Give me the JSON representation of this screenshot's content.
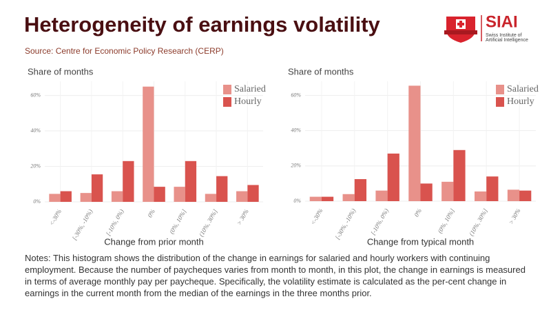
{
  "title": "Heterogeneity of earnings volatility",
  "source": "Source: Centre for Economic Policy Research (CERP)",
  "logo": {
    "name": "SIAI",
    "subtitle": [
      "Swiss Institute of",
      "Artificial Intelligence"
    ]
  },
  "notes": "Notes: This histogram shows the distribution of the change in earnings for salaried and hourly workers with continuing employment. Because the number of paycheques varies from month to month, in this plot, the change in earnings is measured in terms of average monthly pay per paycheque. Specifically, the volatility estimate is calculated as the per-cent change in earnings in the current month from the median of the earnings in the three months prior.",
  "chart_data": [
    {
      "type": "bar",
      "y_label": "Share of months",
      "x_label": "Change from prior month",
      "categories": [
        "<-30%",
        "[-30%, -10%)",
        "[-10%, 0%)",
        "0%",
        "(0%, 10%]",
        "(10%, 30%]",
        "> 30%"
      ],
      "series": [
        {
          "name": "Salaried",
          "color": "#e8918a",
          "values": [
            4.5,
            5,
            6,
            65,
            8.5,
            4.5,
            6
          ]
        },
        {
          "name": "Hourly",
          "color": "#d9534e",
          "values": [
            6,
            15.5,
            23,
            8.5,
            23,
            14.5,
            9.5
          ]
        }
      ],
      "ylim": [
        0,
        68
      ],
      "yticks": [
        {
          "value": 0,
          "label": "0%"
        },
        {
          "value": 20,
          "label": "20%"
        },
        {
          "value": 40,
          "label": "40%"
        },
        {
          "value": 60,
          "label": "60%"
        }
      ],
      "grid": true,
      "legend": "upper right"
    },
    {
      "type": "bar",
      "y_label": "Share of months",
      "x_label": "Change from typical month",
      "categories": [
        "<-30%",
        "[-30%, -10%)",
        "[-10%, 0%)",
        "0%",
        "(0%, 10%]",
        "(10%, 30%]",
        "> 30%"
      ],
      "series": [
        {
          "name": "Salaried",
          "color": "#e8918a",
          "values": [
            2.5,
            4,
            6,
            65.5,
            11,
            5.5,
            6.5
          ]
        },
        {
          "name": "Hourly",
          "color": "#d9534e",
          "values": [
            2.5,
            12.5,
            27,
            10,
            29,
            14,
            6
          ]
        }
      ],
      "ylim": [
        0,
        68
      ],
      "yticks": [
        {
          "value": 0,
          "label": "0%"
        },
        {
          "value": 20,
          "label": "20%"
        },
        {
          "value": 40,
          "label": "40%"
        },
        {
          "value": 60,
          "label": "60%"
        }
      ],
      "grid": true,
      "legend": "upper right"
    }
  ]
}
